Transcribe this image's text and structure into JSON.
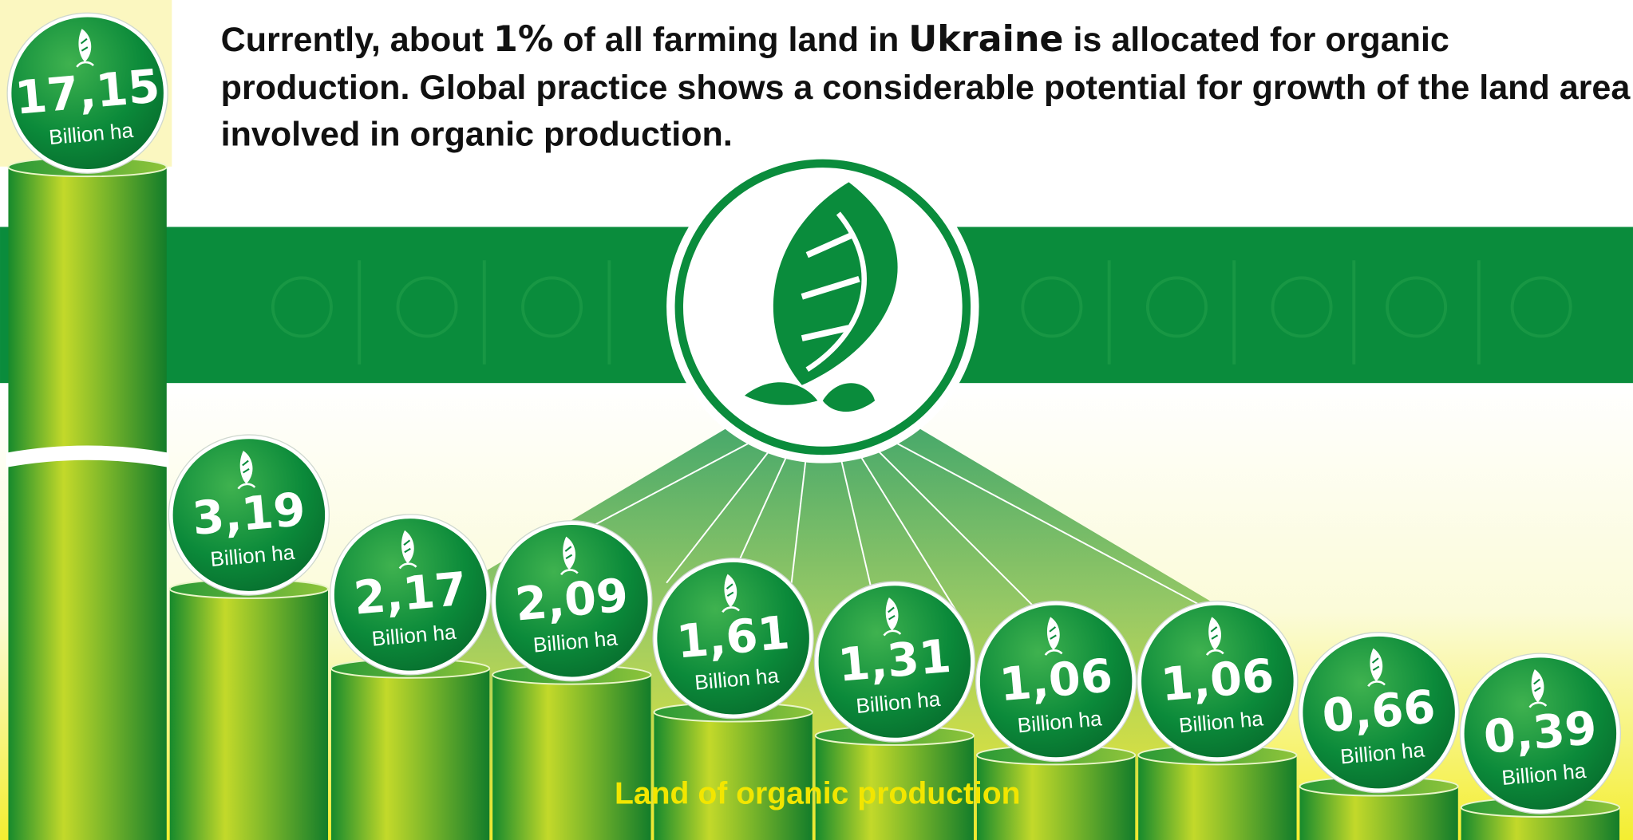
{
  "chart_data": {
    "type": "bar",
    "title_parts": [
      "Currently, about ",
      "1%",
      " of all farming land in ",
      "Ukraine",
      " is allocated for organic production. Global practice shows a considerable potential for growth of the land area involved in organic production."
    ],
    "values": [
      17.15,
      3.19,
      2.17,
      2.09,
      1.61,
      1.31,
      1.06,
      1.06,
      0.66,
      0.39
    ],
    "value_labels": [
      "17,15",
      "3,19",
      "2,17",
      "2,09",
      "1,61",
      "1,31",
      "1,06",
      "1,06",
      "0,66",
      "0,39"
    ],
    "unit_label": "Billion ha",
    "x_label": "Land of organic production",
    "color": "#0a8c3c"
  }
}
